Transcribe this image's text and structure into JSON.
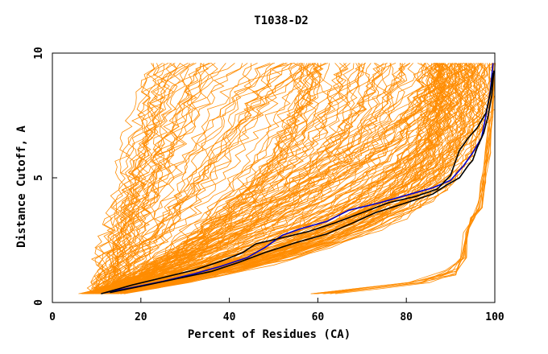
{
  "chart_data": {
    "type": "line",
    "title": "T1038-D2",
    "xlabel": "Percent of Residues (CA)",
    "ylabel": "Distance Cutoff, A",
    "xlim": [
      0,
      100
    ],
    "ylim": [
      0,
      10
    ],
    "x_ticks": [
      0,
      20,
      40,
      60,
      80,
      100
    ],
    "y_ticks": [
      0,
      5,
      10
    ],
    "grid": false,
    "legend": "none",
    "colors": {
      "orange": "#ff8c00",
      "black": "#000000",
      "blue": "#0000cc",
      "axis": "#000000"
    },
    "series": [
      {
        "color": "#0000cc",
        "x": [
          12,
          18,
          25,
          32,
          38,
          44,
          48,
          52,
          56,
          62,
          67,
          74,
          80,
          86,
          90,
          93,
          95,
          97,
          98,
          99,
          99.6
        ],
        "y": [
          0.4,
          0.6,
          0.85,
          1.15,
          1.45,
          1.8,
          2.2,
          2.7,
          2.95,
          3.25,
          3.7,
          4.0,
          4.3,
          4.6,
          4.9,
          5.5,
          6.0,
          6.6,
          7.5,
          8.5,
          9.6
        ]
      },
      {
        "color": "#000000",
        "x": [
          11,
          18,
          25,
          32,
          38,
          43,
          46,
          52,
          58,
          64,
          70,
          76,
          82,
          87,
          90,
          91,
          92,
          94,
          96,
          98,
          99,
          99.6
        ],
        "y": [
          0.35,
          0.7,
          1.0,
          1.3,
          1.65,
          2.0,
          2.35,
          2.6,
          2.85,
          3.2,
          3.6,
          4.0,
          4.25,
          4.55,
          5.1,
          5.6,
          6.1,
          6.6,
          7.0,
          7.6,
          8.4,
          9.2
        ]
      },
      {
        "color": "#000000",
        "x": [
          13,
          20,
          28,
          36,
          42,
          48,
          55,
          62,
          68,
          73,
          80,
          86,
          89,
          92,
          94,
          95,
          96,
          97.5,
          98.5,
          99.3,
          99.8
        ],
        "y": [
          0.4,
          0.65,
          0.95,
          1.25,
          1.6,
          2.0,
          2.4,
          2.75,
          3.2,
          3.6,
          4.0,
          4.35,
          4.7,
          5.0,
          5.5,
          5.7,
          6.2,
          6.8,
          7.5,
          8.3,
          9.3
        ]
      }
    ]
  }
}
